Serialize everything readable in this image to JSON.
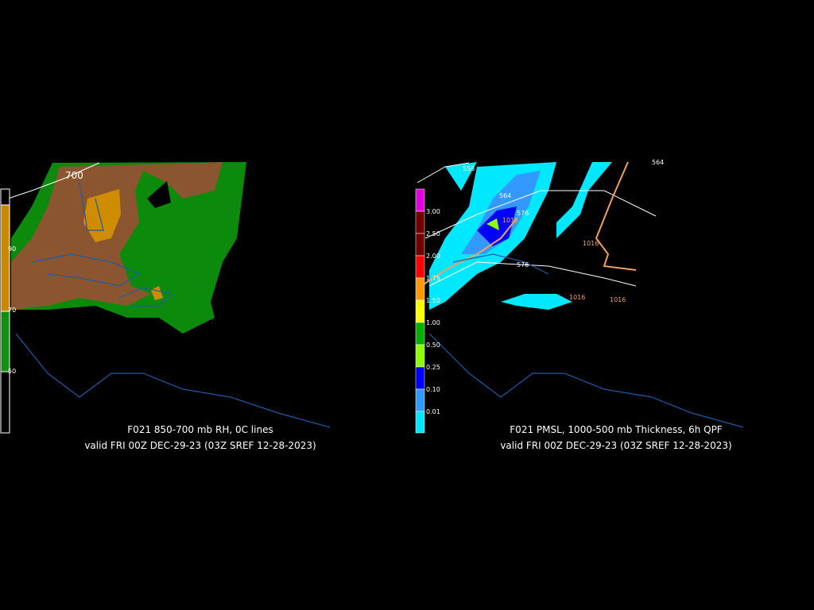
{
  "panels": [
    {
      "caption": "F021 850-700 mb RH, 0C lines",
      "valid": "valid FRI 00Z DEC-29-23 (03Z SREF 12-28-2023)",
      "contour_labels": [
        "700"
      ],
      "colorbar": [
        {
          "label": "90",
          "color": "#c88a00"
        },
        {
          "label": "70",
          "color": "#109010"
        },
        {
          "label": "50",
          "color": "#000000"
        }
      ]
    },
    {
      "caption": "F021 PMSL, 1000-500 mb Thickness, 6h QPF",
      "valid": "valid FRI 00Z DEC-29-23 (03Z SREF 12-28-2023)",
      "contour_labels": [
        "564",
        "558",
        "564",
        "576",
        "1012",
        "1016",
        "576",
        "1016",
        "1016"
      ],
      "colorbar": [
        {
          "label": "3.00",
          "color": "#e000e0"
        },
        {
          "label": "2.50",
          "color": "#700000"
        },
        {
          "label": "2.00",
          "color": "#700000"
        },
        {
          "label": "1.75",
          "color": "#ff0000"
        },
        {
          "label": "1.50",
          "color": "#ff9900"
        },
        {
          "label": "1.00",
          "color": "#ffff00"
        },
        {
          "label": "0.50",
          "color": "#00b000"
        },
        {
          "label": "0.25",
          "color": "#90ff00"
        },
        {
          "label": "0.10",
          "color": "#0000ff"
        },
        {
          "label": "0.01",
          "color": "#3399ff"
        }
      ],
      "colorbar_low": "#00e8ff"
    }
  ]
}
